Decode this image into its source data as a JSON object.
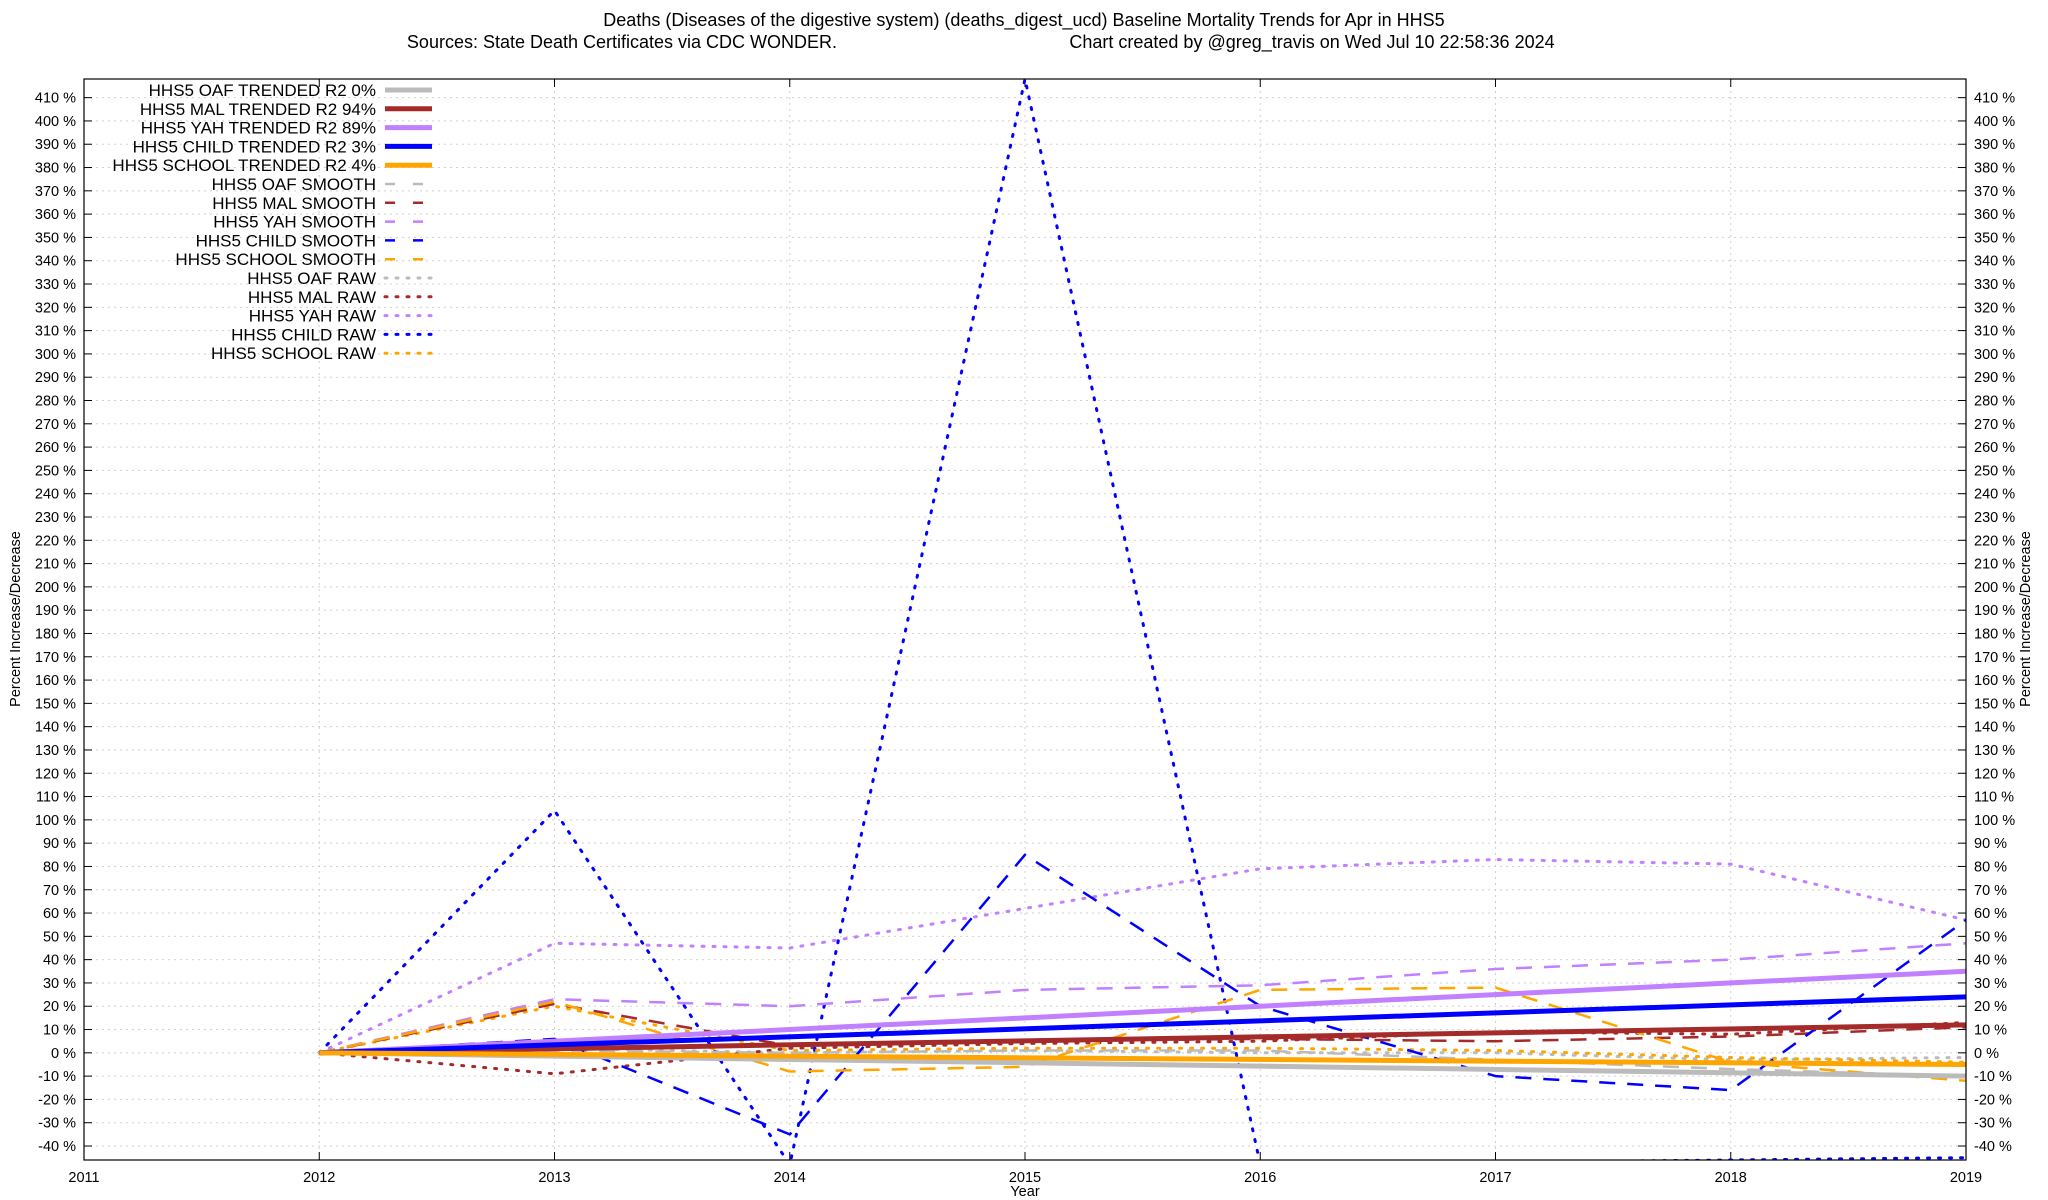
{
  "chart_data": {
    "type": "line",
    "title_line1": "Deaths (Diseases of the digestive system) (deaths_digest_ucd)  Baseline Mortality Trends for Apr in HHS5",
    "title_line2_left": "Sources: State Death Certificates via CDC WONDER.",
    "title_line2_right": "Chart created by @greg_travis on Wed Jul 10 22:58:36 2024",
    "xlabel": "Year",
    "ylabel_left": "Percent Increase/Decrease",
    "ylabel_right": "Percent Increase/Decrease",
    "xlim": [
      2011,
      2019
    ],
    "ylim": [
      -46,
      418
    ],
    "x_ticks": [
      2011,
      2012,
      2013,
      2014,
      2015,
      2016,
      2017,
      2018,
      2019
    ],
    "x_tick_labels": [
      "2011",
      "2012",
      "2013",
      "2014",
      "2015",
      "2016",
      "2017",
      "2018",
      "2019"
    ],
    "y_ticks": [
      -40,
      -30,
      -20,
      -10,
      0,
      10,
      20,
      30,
      40,
      50,
      60,
      70,
      80,
      90,
      100,
      110,
      120,
      130,
      140,
      150,
      160,
      170,
      180,
      190,
      200,
      210,
      220,
      230,
      240,
      250,
      260,
      270,
      280,
      290,
      300,
      310,
      320,
      330,
      340,
      350,
      360,
      370,
      380,
      390,
      400,
      410
    ],
    "y_tick_labels": [
      "-40 %",
      "-30 %",
      "-20 %",
      "-10 %",
      "0 %",
      "10 %",
      "20 %",
      "30 %",
      "40 %",
      "50 %",
      "60 %",
      "70 %",
      "80 %",
      "90 %",
      "100 %",
      "110 %",
      "120 %",
      "130 %",
      "140 %",
      "150 %",
      "160 %",
      "170 %",
      "180 %",
      "190 %",
      "200 %",
      "210 %",
      "220 %",
      "230 %",
      "240 %",
      "250 %",
      "260 %",
      "270 %",
      "280 %",
      "290 %",
      "300 %",
      "310 %",
      "320 %",
      "330 %",
      "340 %",
      "350 %",
      "360 %",
      "370 %",
      "380 %",
      "390 %",
      "400 %",
      "410 %"
    ],
    "grid": true,
    "legend_position": "top-left",
    "series": [
      {
        "name": "HHS5 OAF TRENDED R2  0%",
        "style": "solid",
        "color": "#bbbbbb",
        "x": [
          2012,
          2019
        ],
        "y": [
          0,
          -10
        ]
      },
      {
        "name": "HHS5 MAL TRENDED R2  94%",
        "style": "solid",
        "color": "#a52a2a",
        "x": [
          2012,
          2019
        ],
        "y": [
          0,
          12
        ]
      },
      {
        "name": "HHS5 YAH TRENDED R2  89%",
        "style": "solid",
        "color": "#c080ff",
        "x": [
          2012,
          2019
        ],
        "y": [
          0,
          35
        ]
      },
      {
        "name": "HHS5 CHILD TRENDED R2  3%",
        "style": "solid",
        "color": "#0000ff",
        "x": [
          2012,
          2019
        ],
        "y": [
          0,
          24
        ]
      },
      {
        "name": "HHS5 SCHOOL TRENDED R2  4%",
        "style": "solid",
        "color": "#ffa500",
        "x": [
          2012,
          2019
        ],
        "y": [
          0,
          -5
        ]
      },
      {
        "name": "HHS5 OAF SMOOTH",
        "style": "dash",
        "color": "#bbbbbb",
        "x": [
          2012,
          2013,
          2014,
          2015,
          2016,
          2017,
          2018,
          2019
        ],
        "y": [
          0,
          1,
          0,
          1,
          1,
          -3,
          -7,
          -10
        ]
      },
      {
        "name": "HHS5 MAL SMOOTH",
        "style": "dash",
        "color": "#a52a2a",
        "x": [
          2012,
          2013,
          2014,
          2015,
          2016,
          2017,
          2018,
          2019
        ],
        "y": [
          0,
          21,
          3,
          5,
          6,
          5,
          7,
          11
        ]
      },
      {
        "name": "HHS5 YAH SMOOTH",
        "style": "dash",
        "color": "#c080ff",
        "x": [
          2012,
          2013,
          2014,
          2015,
          2016,
          2017,
          2018,
          2019
        ],
        "y": [
          0,
          23,
          20,
          27,
          29,
          36,
          40,
          47
        ]
      },
      {
        "name": "HHS5 CHILD SMOOTH",
        "style": "dash",
        "color": "#0000ff",
        "x": [
          2012,
          2013,
          2014,
          2015,
          2016,
          2017,
          2018,
          2019
        ],
        "y": [
          0,
          6,
          -35,
          85,
          20,
          -10,
          -16,
          57
        ]
      },
      {
        "name": "HHS5 SCHOOL SMOOTH",
        "style": "dash",
        "color": "#ffa500",
        "x": [
          2012,
          2013,
          2014,
          2015,
          2016,
          2017,
          2018,
          2019
        ],
        "y": [
          0,
          22,
          -8,
          -6,
          27,
          28,
          -4,
          -12
        ]
      },
      {
        "name": "HHS5 OAF RAW",
        "style": "dot",
        "color": "#bbbbbb",
        "x": [
          2012,
          2013,
          2014,
          2015,
          2016,
          2017,
          2018,
          2019
        ],
        "y": [
          0,
          2,
          0,
          1,
          0,
          0,
          -3,
          -2
        ]
      },
      {
        "name": "HHS5 MAL RAW",
        "style": "dot",
        "color": "#a52a2a",
        "x": [
          2012,
          2013,
          2014,
          2015,
          2016,
          2017,
          2018,
          2019
        ],
        "y": [
          0,
          -9,
          2,
          4,
          5,
          9,
          8,
          13
        ]
      },
      {
        "name": "HHS5 YAH RAW",
        "style": "dot",
        "color": "#c080ff",
        "x": [
          2012,
          2013,
          2014,
          2015,
          2016,
          2017,
          2018,
          2019
        ],
        "y": [
          0,
          47,
          45,
          62,
          79,
          83,
          81,
          57
        ]
      },
      {
        "name": "HHS5 CHILD RAW",
        "style": "dot",
        "color": "#0000ff",
        "x": [
          2012,
          2013,
          2014,
          2015,
          2016,
          2017,
          2018,
          2019
        ],
        "y": [
          0,
          104,
          -48,
          418,
          -48,
          -47,
          -46,
          -45
        ]
      },
      {
        "name": "HHS5 SCHOOL RAW",
        "style": "dot",
        "color": "#ffa500",
        "x": [
          2012,
          2013,
          2014,
          2015,
          2016,
          2017,
          2018,
          2019
        ],
        "y": [
          0,
          20,
          1,
          2,
          2,
          1,
          -2,
          -4
        ]
      }
    ]
  }
}
